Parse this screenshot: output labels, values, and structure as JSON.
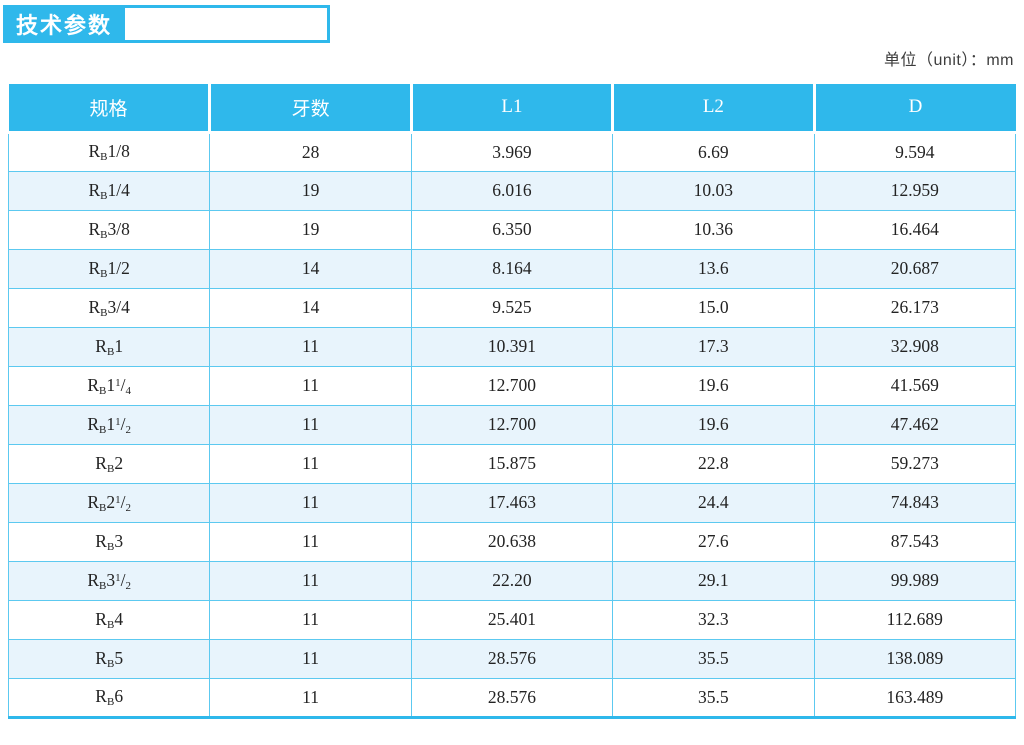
{
  "header": {
    "title": "技术参数",
    "unit_label": "单位（unit）：mm"
  },
  "colors": {
    "accent": "#2FB8EB",
    "grid_line": "#5CC9F0",
    "row_alt": "#E8F4FC",
    "header_text": "#FFFFFF",
    "body_text": "#232323"
  },
  "table": {
    "columns": [
      "规格",
      "牙数",
      "L1",
      "L2",
      "D"
    ],
    "rows": [
      {
        "spec": {
          "base": "R",
          "sub": "B",
          "whole": "1/8",
          "num": "",
          "den": ""
        },
        "teeth": "28",
        "l1": "3.969",
        "l2": "6.69",
        "d": "9.594"
      },
      {
        "spec": {
          "base": "R",
          "sub": "B",
          "whole": "1/4",
          "num": "",
          "den": ""
        },
        "teeth": "19",
        "l1": "6.016",
        "l2": "10.03",
        "d": "12.959"
      },
      {
        "spec": {
          "base": "R",
          "sub": "B",
          "whole": "3/8",
          "num": "",
          "den": ""
        },
        "teeth": "19",
        "l1": "6.350",
        "l2": "10.36",
        "d": "16.464"
      },
      {
        "spec": {
          "base": "R",
          "sub": "B",
          "whole": "1/2",
          "num": "",
          "den": ""
        },
        "teeth": "14",
        "l1": "8.164",
        "l2": "13.6",
        "d": "20.687"
      },
      {
        "spec": {
          "base": "R",
          "sub": "B",
          "whole": "3/4",
          "num": "",
          "den": ""
        },
        "teeth": "14",
        "l1": "9.525",
        "l2": "15.0",
        "d": "26.173"
      },
      {
        "spec": {
          "base": "R",
          "sub": "B",
          "whole": "1",
          "num": "",
          "den": ""
        },
        "teeth": "11",
        "l1": "10.391",
        "l2": "17.3",
        "d": "32.908"
      },
      {
        "spec": {
          "base": "R",
          "sub": "B",
          "whole": "1",
          "num": "1",
          "den": "4"
        },
        "teeth": "11",
        "l1": "12.700",
        "l2": "19.6",
        "d": "41.569"
      },
      {
        "spec": {
          "base": "R",
          "sub": "B",
          "whole": "1",
          "num": "1",
          "den": "2"
        },
        "teeth": "11",
        "l1": "12.700",
        "l2": "19.6",
        "d": "47.462"
      },
      {
        "spec": {
          "base": "R",
          "sub": "B",
          "whole": "2",
          "num": "",
          "den": ""
        },
        "teeth": "11",
        "l1": "15.875",
        "l2": "22.8",
        "d": "59.273"
      },
      {
        "spec": {
          "base": "R",
          "sub": "B",
          "whole": "2",
          "num": "1",
          "den": "2"
        },
        "teeth": "11",
        "l1": "17.463",
        "l2": "24.4",
        "d": "74.843"
      },
      {
        "spec": {
          "base": "R",
          "sub": "B",
          "whole": "3",
          "num": "",
          "den": ""
        },
        "teeth": "11",
        "l1": "20.638",
        "l2": "27.6",
        "d": "87.543"
      },
      {
        "spec": {
          "base": "R",
          "sub": "B",
          "whole": "3",
          "num": "1",
          "den": "2"
        },
        "teeth": "11",
        "l1": "22.20",
        "l2": "29.1",
        "d": "99.989"
      },
      {
        "spec": {
          "base": "R",
          "sub": "B",
          "whole": "4",
          "num": "",
          "den": ""
        },
        "teeth": "11",
        "l1": "25.401",
        "l2": "32.3",
        "d": "112.689"
      },
      {
        "spec": {
          "base": "R",
          "sub": "B",
          "whole": "5",
          "num": "",
          "den": ""
        },
        "teeth": "11",
        "l1": "28.576",
        "l2": "35.5",
        "d": "138.089"
      },
      {
        "spec": {
          "base": "R",
          "sub": "B",
          "whole": "6",
          "num": "",
          "den": ""
        },
        "teeth": "11",
        "l1": "28.576",
        "l2": "35.5",
        "d": "163.489"
      }
    ]
  }
}
